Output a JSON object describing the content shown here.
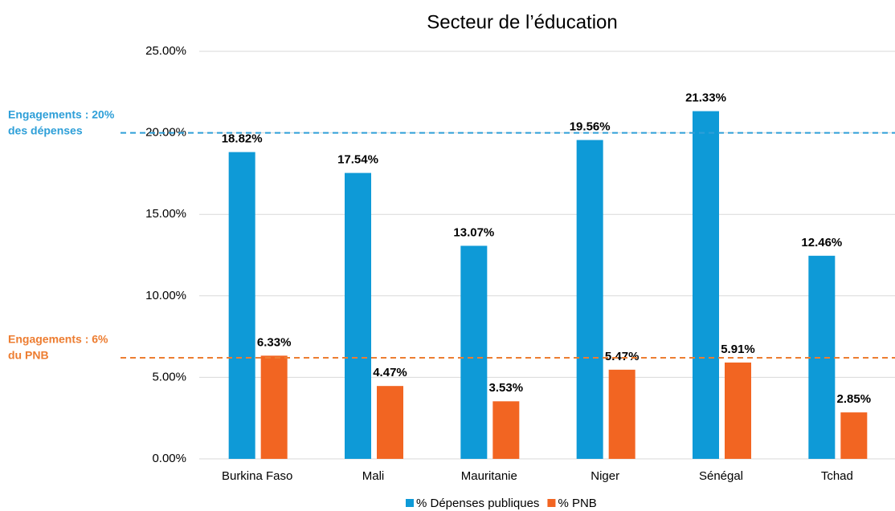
{
  "chart_data": {
    "type": "bar",
    "title": "Secteur de l’éducation",
    "categories": [
      "Burkina Faso",
      "Mali",
      "Mauritanie",
      "Niger",
      "Sénégal",
      "Tchad"
    ],
    "series": [
      {
        "name": "% Dépenses publiques",
        "color": "#0e9ad7",
        "values": [
          18.82,
          17.54,
          13.07,
          19.56,
          21.33,
          12.46
        ],
        "value_labels": [
          "18.82%",
          "17.54%",
          "13.07%",
          "19.56%",
          "21.33%",
          "12.46%"
        ]
      },
      {
        "name": "% PNB",
        "color": "#f26522",
        "values": [
          6.33,
          4.47,
          3.53,
          5.47,
          5.91,
          2.85
        ],
        "value_labels": [
          "6.33%",
          "4.47%",
          "3.53%",
          "5.47%",
          "5.91%",
          "2.85%"
        ]
      }
    ],
    "ylim": [
      0,
      25
    ],
    "yticks": [
      {
        "value": 0,
        "label": "0.00%"
      },
      {
        "value": 5,
        "label": "5.00%"
      },
      {
        "value": 10,
        "label": "10.00%"
      },
      {
        "value": 15,
        "label": "15.00%"
      },
      {
        "value": 20,
        "label": "20.00%"
      },
      {
        "value": 25,
        "label": "25.00%"
      }
    ],
    "grid": true,
    "reference_lines": [
      {
        "value": 20,
        "color": "#2e9fd8",
        "label_lines": [
          "Engagements : 20%",
          "des dépenses"
        ]
      },
      {
        "value": 6.2,
        "color": "#ed7d31",
        "label_lines": [
          "Engagements : 6%",
          "du PNB"
        ]
      }
    ],
    "legend": "bottom"
  }
}
